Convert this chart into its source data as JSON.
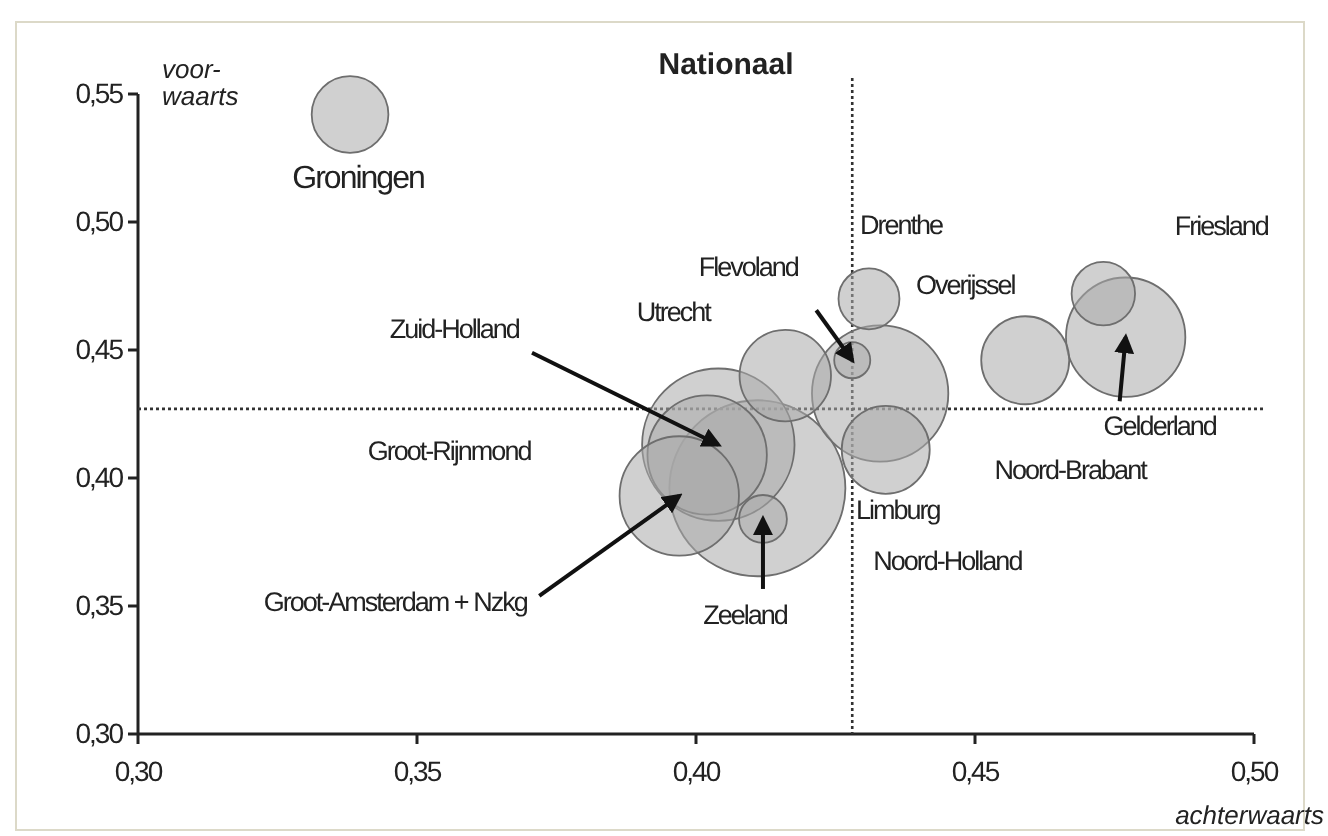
{
  "chart_data": {
    "type": "bubble",
    "title": "Nationaal",
    "xlabel": "achterwaarts",
    "ylabel": "voor-\nwaarts",
    "x": [
      0.411,
      0.404,
      0.433,
      0.402,
      0.397,
      0.477,
      0.416,
      0.459,
      0.434,
      0.338,
      0.473,
      0.431,
      0.412,
      0.428
    ],
    "series": [
      {
        "color": "#a9a9a9",
        "values": [
          0.396,
          0.413,
          0.433,
          0.409,
          0.393,
          0.455,
          0.44,
          0.446,
          0.411,
          0.542,
          0.472,
          0.47,
          0.384,
          0.446
        ],
        "sizes": [
          1,
          0.75,
          0.6,
          0.46,
          0.46,
          0.46,
          0.27,
          0.25,
          0.25,
          0.19,
          0.13,
          0.12,
          0.074,
          0.042
        ]
      }
    ],
    "xlim": [
      0.3,
      0.5
    ],
    "ylim": [
      0.3,
      0.55
    ],
    "xticks": [
      {
        "value": 0.3,
        "label": "0,30"
      },
      {
        "value": 0.35,
        "label": "0,35"
      },
      {
        "value": 0.4,
        "label": "0,40"
      },
      {
        "value": 0.45,
        "label": "0,45"
      },
      {
        "value": 0.5,
        "label": "0,50"
      }
    ],
    "yticks": [
      {
        "value": 0.3,
        "label": "0,30"
      },
      {
        "value": 0.35,
        "label": "0,35"
      },
      {
        "value": 0.4,
        "label": "0,40"
      },
      {
        "value": 0.45,
        "label": "0,45"
      },
      {
        "value": 0.5,
        "label": "0,50"
      },
      {
        "value": 0.55,
        "label": "0,55"
      }
    ],
    "ref_lines": [
      {
        "axis": "x",
        "value": 0.428,
        "line_style": "dotted"
      },
      {
        "axis": "y",
        "value": 0.427,
        "line_style": "dotted"
      }
    ],
    "annotations": [
      "Noord-Holland",
      {
        "text": "Zuid-Holland",
        "x": 0.404,
        "y": 0.413
      },
      "Noord-Brabant",
      "Groot-Rijnmond",
      {
        "text": "Groot-Amsterdam + Nzkg",
        "x": 0.397,
        "y": 0.393
      },
      {
        "text": "Gelderland",
        "x": 0.477,
        "y": 0.455
      },
      "Utrecht",
      "Overijssel",
      "Limburg",
      "Groningen",
      "Friesland",
      "Drenthe",
      {
        "text": "Zeeland",
        "x": 0.412,
        "y": 0.384
      },
      {
        "text": "Flevoland",
        "x": 0.428,
        "y": 0.446
      }
    ],
    "grid": false
  }
}
